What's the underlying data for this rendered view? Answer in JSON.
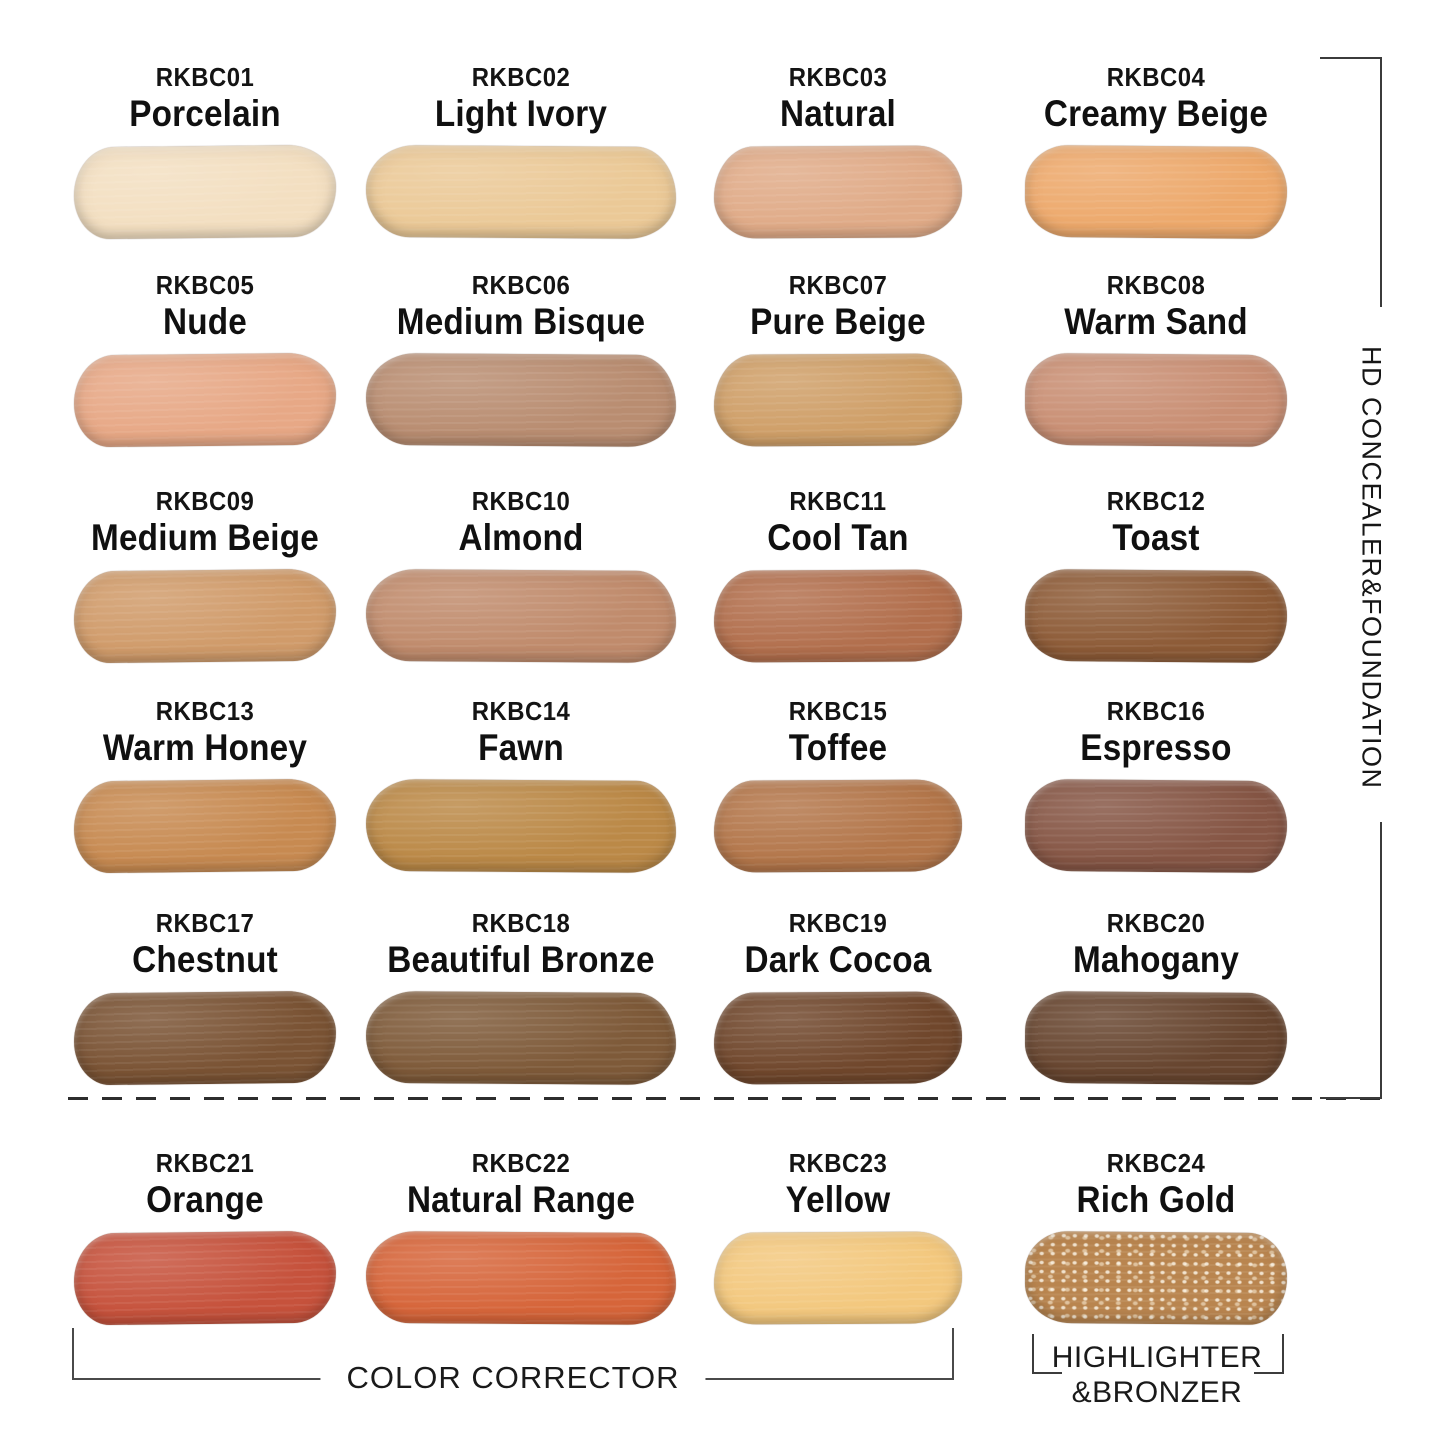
{
  "side_label": "HD CONCEALER&FOUNDATION",
  "bottom": {
    "color_corrector_label": "COLOR CORRECTOR",
    "highlighter_label_line1": "HIGHLIGHTER",
    "highlighter_label_line2": "&BRONZER"
  },
  "sections": {
    "concealer_foundation": "HD CONCEALER&FOUNDATION",
    "color_corrector": "COLOR CORRECTOR",
    "highlighter_bronzer": "HIGHLIGHTER&BRONZER"
  },
  "swatches": [
    {
      "code": "RKBC01",
      "name": "Porcelain",
      "color": "#f3dfc1",
      "section": "HD CONCEALER&FOUNDATION"
    },
    {
      "code": "RKBC02",
      "name": "Light Ivory",
      "color": "#ebc997",
      "section": "HD CONCEALER&FOUNDATION"
    },
    {
      "code": "RKBC03",
      "name": "Natural",
      "color": "#e0ab88",
      "section": "HD CONCEALER&FOUNDATION"
    },
    {
      "code": "RKBC04",
      "name": "Creamy Beige",
      "color": "#eda96c",
      "section": "HD CONCEALER&FOUNDATION"
    },
    {
      "code": "RKBC05",
      "name": "Nude",
      "color": "#e7a886",
      "section": "HD CONCEALER&FOUNDATION"
    },
    {
      "code": "RKBC06",
      "name": "Medium Bisque",
      "color": "#b98d71",
      "section": "HD CONCEALER&FOUNDATION"
    },
    {
      "code": "RKBC07",
      "name": "Pure Beige",
      "color": "#cf9f68",
      "section": "HD CONCEALER&FOUNDATION"
    },
    {
      "code": "RKBC08",
      "name": "Warm Sand",
      "color": "#c98f74",
      "section": "HD CONCEALER&FOUNDATION"
    },
    {
      "code": "RKBC09",
      "name": "Medium Beige",
      "color": "#d09b6a",
      "section": "HD CONCEALER&FOUNDATION"
    },
    {
      "code": "RKBC10",
      "name": "Almond",
      "color": "#c08b6c",
      "section": "HD CONCEALER&FOUNDATION"
    },
    {
      "code": "RKBC11",
      "name": "Cool Tan",
      "color": "#b26f4d",
      "section": "HD CONCEALER&FOUNDATION"
    },
    {
      "code": "RKBC12",
      "name": "Toast",
      "color": "#8d5b37",
      "section": "HD CONCEALER&FOUNDATION"
    },
    {
      "code": "RKBC13",
      "name": "Warm Honey",
      "color": "#c78a51",
      "section": "HD CONCEALER&FOUNDATION"
    },
    {
      "code": "RKBC14",
      "name": "Fawn",
      "color": "#bb8947",
      "section": "HD CONCEALER&FOUNDATION"
    },
    {
      "code": "RKBC15",
      "name": "Toffee",
      "color": "#b3764a",
      "section": "HD CONCEALER&FOUNDATION"
    },
    {
      "code": "RKBC16",
      "name": "Espresso",
      "color": "#865645",
      "section": "HD CONCEALER&FOUNDATION"
    },
    {
      "code": "RKBC17",
      "name": "Chestnut",
      "color": "#7a5334",
      "section": "HD CONCEALER&FOUNDATION"
    },
    {
      "code": "RKBC18",
      "name": "Beautiful Bronze",
      "color": "#7e5a39",
      "section": "HD CONCEALER&FOUNDATION"
    },
    {
      "code": "RKBC19",
      "name": "Dark Cocoa",
      "color": "#70472c",
      "section": "HD CONCEALER&FOUNDATION"
    },
    {
      "code": "RKBC20",
      "name": "Mahogany",
      "color": "#67452f",
      "section": "HD CONCEALER&FOUNDATION"
    },
    {
      "code": "RKBC21",
      "name": "Orange",
      "color": "#c6523c",
      "section": "COLOR CORRECTOR"
    },
    {
      "code": "RKBC22",
      "name": "Natural Range",
      "color": "#d6653a",
      "section": "COLOR CORRECTOR"
    },
    {
      "code": "RKBC23",
      "name": "Yellow",
      "color": "#f3c87e",
      "section": "COLOR CORRECTOR"
    },
    {
      "code": "RKBC24",
      "name": "Rich Gold",
      "color": "#b9854f",
      "section": "HIGHLIGHTER&BRONZER",
      "speckled": true
    }
  ]
}
